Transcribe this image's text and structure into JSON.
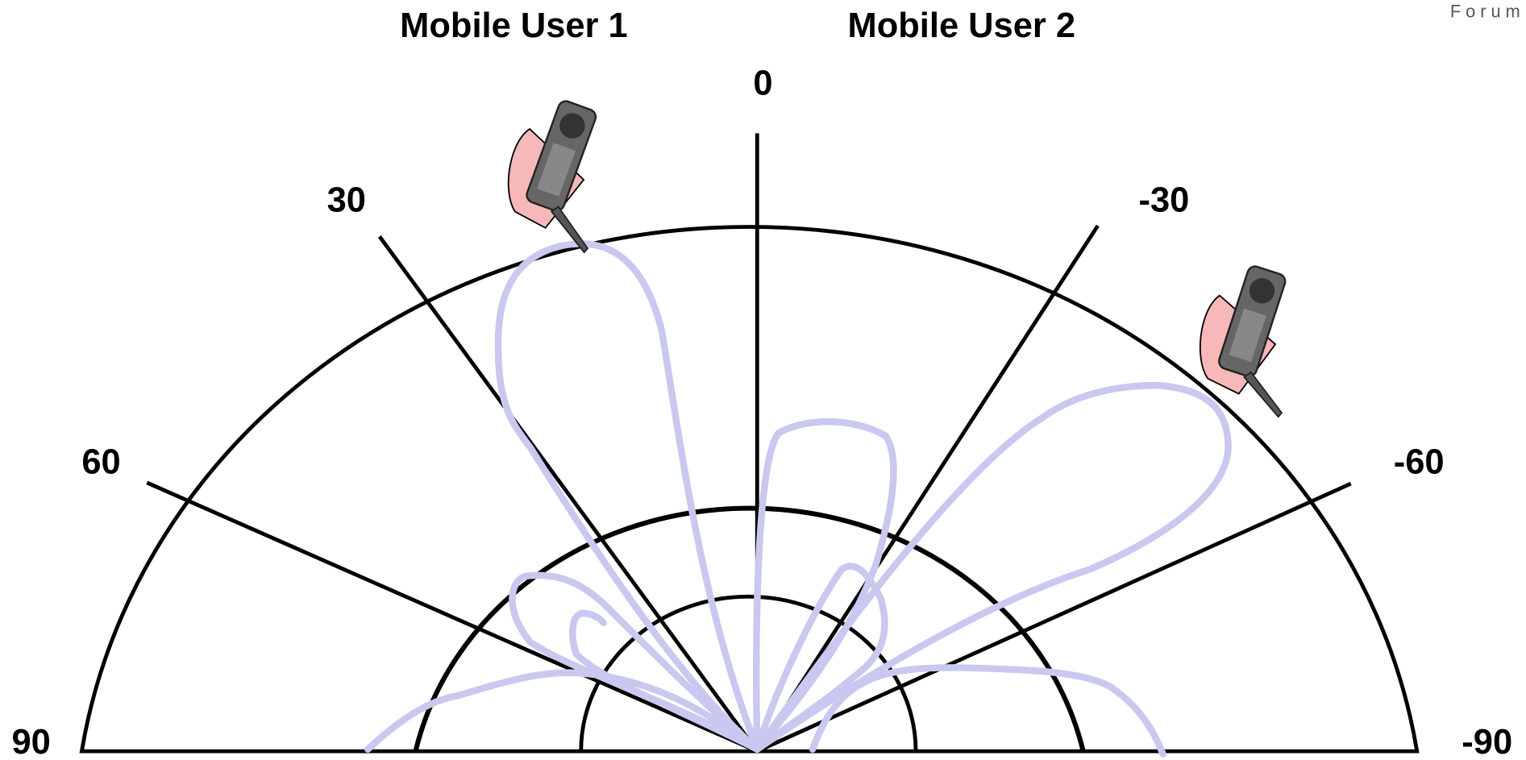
{
  "header": {
    "user1": "Mobile User 1",
    "user2": "Mobile User 2",
    "logo": "F o r u m"
  },
  "angle_labels": {
    "top": "0",
    "left30": "30",
    "right30": "-30",
    "left60": "60",
    "right60": "-60",
    "left90": "90",
    "right90": "-90"
  }
}
